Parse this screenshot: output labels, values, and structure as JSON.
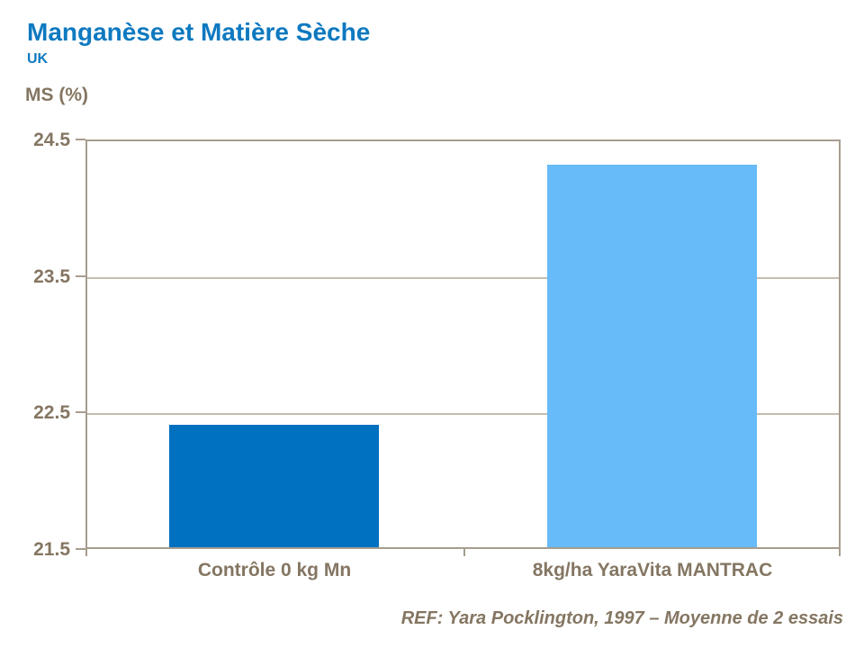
{
  "header": {
    "title": "Manganèse et Matière Sèche",
    "subtitle": "UK"
  },
  "footer": {
    "reference": "REF: Yara Pocklington, 1997 – Moyenne de 2 essais"
  },
  "colors": {
    "title_blue": "#0E79C0",
    "axis_text_brown": "#847662",
    "axis_line": "#A79D8F",
    "gridline": "#C5BCB0",
    "bar_control_blue": "#0070C0",
    "bar_treated_light_blue": "#66BBF8"
  },
  "chart_data": {
    "type": "bar",
    "title": "Manganèse et Matière Sèche",
    "subtitle": "UK",
    "ylabel": "MS (%)",
    "categories": [
      "Contrôle 0 kg Mn",
      "8kg/ha YaraVita MANTRAC"
    ],
    "values": [
      22.4,
      24.3
    ],
    "bar_colors": [
      "#0070C0",
      "#66BBF8"
    ],
    "ylim": [
      21.5,
      24.5
    ],
    "yticks": [
      21.5,
      22.5,
      23.5,
      24.5
    ],
    "ytick_labels": [
      "21.5",
      "22.5",
      "23.5",
      "24.5"
    ],
    "grid": true,
    "legend_position": "none",
    "annotation": "REF: Yara Pocklington, 1997 – Moyenne de 2 essais"
  }
}
